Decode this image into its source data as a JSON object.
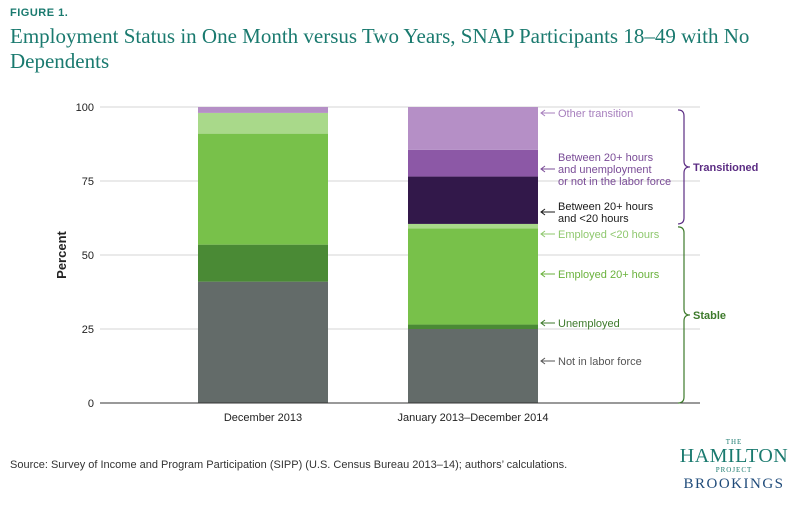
{
  "figure_label": "FIGURE 1.",
  "title": "Employment Status in One Month versus Two Years, SNAP Participants 18–49 with No Dependents",
  "source": "Source:  Survey of Income and Program Participation (SIPP) (U.S. Census Bureau 2013–14); authors’ calculations.",
  "logo": {
    "the": "THE",
    "hamilton": "HAMILTON",
    "project": "PROJECT",
    "brookings": "BROOKINGS"
  },
  "chart_data": {
    "type": "bar",
    "stacked": true,
    "ylabel": "Percent",
    "ylim": [
      0,
      100
    ],
    "yticks": [
      0,
      25,
      50,
      75,
      100
    ],
    "grid": true,
    "categories": [
      "December 2013",
      "January 2013–December 2014"
    ],
    "series": [
      {
        "name": "Not in labor force",
        "color": "#636b69",
        "values": [
          41,
          25
        ]
      },
      {
        "name": "Unemployed",
        "color": "#4a8a35",
        "values": [
          12.5,
          1.5
        ]
      },
      {
        "name": "Employed 20+ hours",
        "color": "#78c14a",
        "values": [
          37.5,
          32.5
        ]
      },
      {
        "name": "Employed <20 hours",
        "color": "#a9d98a",
        "values": [
          7,
          1.5
        ]
      },
      {
        "name": "Between 20+ hours and <20 hours",
        "color": "#32184a",
        "values": [
          0,
          16
        ]
      },
      {
        "name": "Between 20+ hours and unemployment or not in the labor force",
        "color": "#8c58a6",
        "values": [
          0,
          9
        ]
      },
      {
        "name": "Other transition",
        "color": "#b58fc6",
        "values": [
          2,
          14.5
        ]
      }
    ],
    "annotations": [
      {
        "series": 0,
        "label": "Not in labor force",
        "color": "#555555"
      },
      {
        "series": 1,
        "label": "Unemployed",
        "color": "#3d7a2b"
      },
      {
        "series": 2,
        "label": "Employed 20+ hours",
        "color": "#6ab23c"
      },
      {
        "series": 3,
        "label": "Employed <20 hours",
        "color": "#8fc86e"
      },
      {
        "series": 4,
        "label": "Between 20+ hours\nand <20 hours",
        "color": "#1a1a1a"
      },
      {
        "series": 5,
        "label": "Between 20+ hours\nand unemployment\nor not in the labor force",
        "color": "#7a4c97"
      },
      {
        "series": 6,
        "label": "Other transition",
        "color": "#a77fbd"
      }
    ],
    "groups": [
      {
        "label": "Transitioned",
        "range": [
          60.5,
          99
        ],
        "color": "#5b2c83"
      },
      {
        "label": "Stable",
        "range": [
          0,
          59.5
        ],
        "color": "#3d7a2b"
      }
    ]
  }
}
